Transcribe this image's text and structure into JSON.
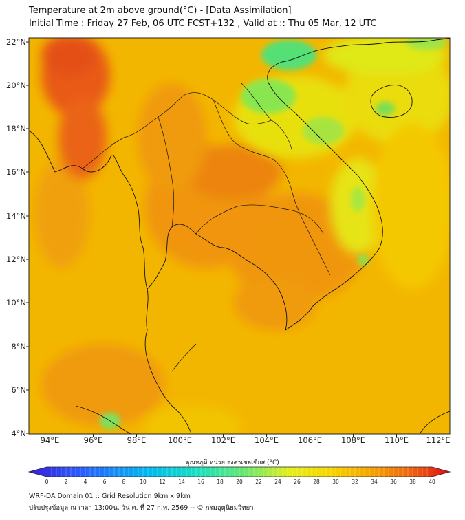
{
  "title_line1": "Temperature at 2m above ground(°C) - [Data Assimilation]",
  "title_line2": "Initial Time : Friday 27 Feb, 06 UTC FCST+132 , Valid at :: Thu 05 Mar, 12 UTC",
  "lon_labels": [
    "94°E",
    "96°E",
    "98°E",
    "100°E",
    "102°E",
    "104°E",
    "106°E",
    "108°E",
    "110°E",
    "112°E"
  ],
  "lat_labels": [
    "22°N",
    "20°N",
    "18°N",
    "16°N",
    "14°N",
    "12°N",
    "10°N",
    "8°N",
    "6°N",
    "4°N"
  ],
  "colorbar_title": "อุณหภูมิ หน่วย องศาเซลเซียส (°C)",
  "colorbar_ticks": [
    "0",
    "2",
    "4",
    "6",
    "8",
    "10",
    "12",
    "14",
    "16",
    "18",
    "20",
    "22",
    "24",
    "26",
    "28",
    "30",
    "32",
    "34",
    "36",
    "38",
    "40"
  ],
  "footer_line1": "WRF-DA Domain 01 :: Grid Resolution 9km x 9km",
  "footer_line2": "ปรับปรุงข้อมูล ณ เวลา 13:00น. วัน ศ. ที่ 27 ก.พ. 2569 -- © กรมอุตุนิยมวิทยา",
  "colors": {
    "base_yellow_orange": "#f3b800",
    "hot_red": "#e8501c",
    "warm_orange": "#f08a10",
    "cool_green": "#55dd70",
    "cool_yellow": "#e6e800"
  }
}
